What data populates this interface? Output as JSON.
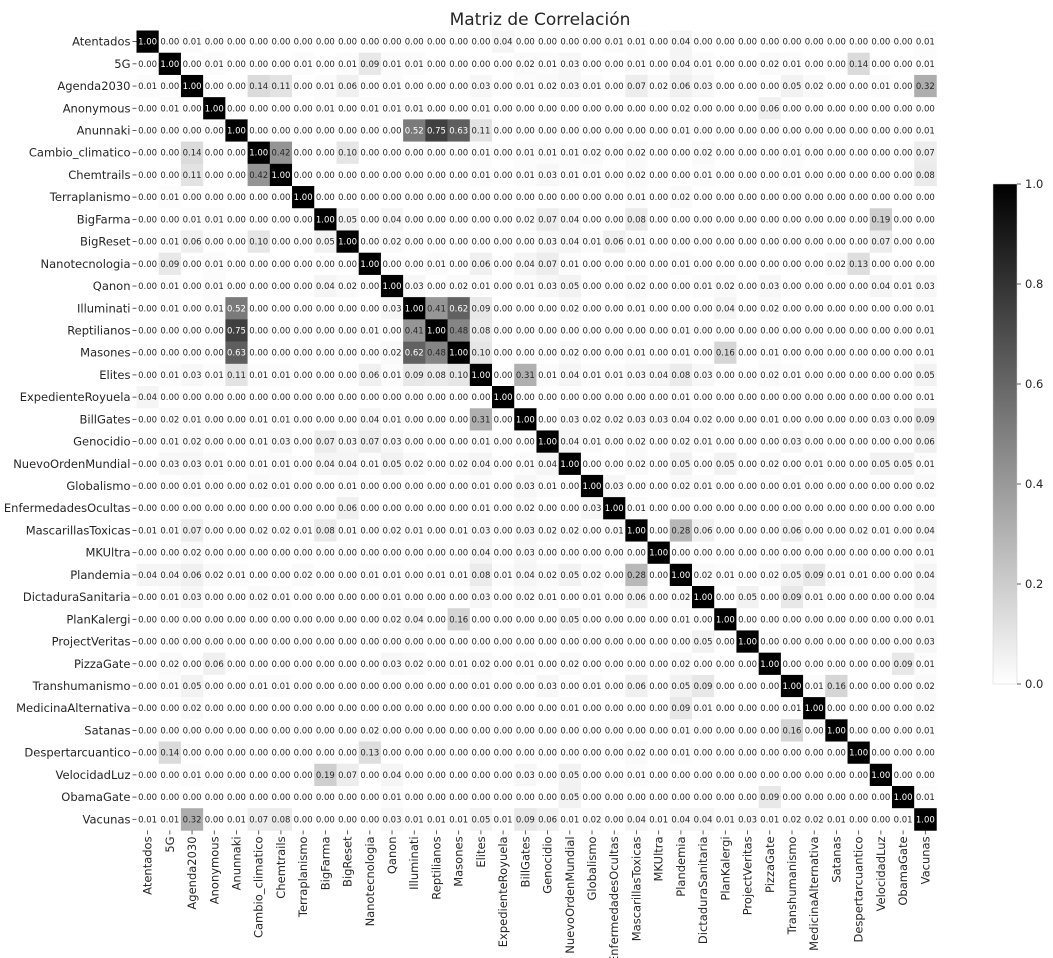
{
  "chart_data": {
    "type": "heatmap",
    "title": "Matriz de Correlación",
    "labels": [
      "Atentados",
      "5G",
      "Agenda2030",
      "Anonymous",
      "Anunnaki",
      "Cambio_climatico",
      "Chemtrails",
      "Terraplanismo",
      "BigFarma",
      "BigReset",
      "Nanotecnologia",
      "Qanon",
      "Illuminati",
      "Reptilianos",
      "Masones",
      "Elites",
      "ExpedienteRoyuela",
      "BillGates",
      "Genocidio",
      "NuevoOrdenMundial",
      "Globalismo",
      "EnfermedadesOcultas",
      "MascarillasToxicas",
      "MKUltra",
      "Plandemia",
      "DictaduraSanitaria",
      "PlanKalergi",
      "ProjectVeritas",
      "PizzaGate",
      "Transhumanismo",
      "MedicinaAlternativa",
      "Satanas",
      "Despertarcuantico",
      "VelocidadLuz",
      "ObamaGate",
      "Vacunas"
    ],
    "matrix": [
      [
        1.0,
        0.0,
        0.01,
        0.0,
        0.0,
        0.0,
        0.0,
        0.0,
        0.0,
        0.0,
        0.0,
        0.0,
        0.0,
        0.0,
        0.0,
        0.0,
        0.04,
        0.0,
        0.0,
        0.0,
        0.0,
        0.01,
        0.01,
        0.0,
        0.04,
        0.0,
        0.0,
        0.0,
        0.0,
        0.0,
        0.0,
        0.0,
        0.0,
        0.0,
        0.0,
        0.01
      ],
      [
        0.0,
        1.0,
        0.0,
        0.01,
        0.0,
        0.0,
        0.0,
        0.01,
        0.0,
        0.01,
        0.09,
        0.01,
        0.01,
        0.0,
        0.0,
        0.0,
        0.0,
        0.02,
        0.01,
        0.03,
        0.0,
        0.0,
        0.01,
        0.0,
        0.04,
        0.01,
        0.0,
        0.0,
        0.02,
        0.01,
        0.0,
        0.0,
        0.14,
        0.0,
        0.0,
        0.01
      ],
      [
        0.01,
        0.0,
        1.0,
        0.0,
        0.0,
        0.14,
        0.11,
        0.0,
        0.01,
        0.06,
        0.0,
        0.01,
        0.0,
        0.0,
        0.0,
        0.03,
        0.0,
        0.01,
        0.02,
        0.03,
        0.01,
        0.0,
        0.07,
        0.02,
        0.06,
        0.03,
        0.0,
        0.0,
        0.0,
        0.05,
        0.02,
        0.0,
        0.0,
        0.01,
        0.0,
        0.32
      ],
      [
        0.0,
        0.01,
        0.0,
        1.0,
        0.0,
        0.0,
        0.0,
        0.0,
        0.01,
        0.0,
        0.01,
        0.01,
        0.01,
        0.0,
        0.0,
        0.01,
        0.0,
        0.0,
        0.0,
        0.0,
        0.0,
        0.0,
        0.0,
        0.0,
        0.02,
        0.0,
        0.0,
        0.0,
        0.06,
        0.0,
        0.0,
        0.0,
        0.0,
        0.0,
        0.0,
        0.0
      ],
      [
        0.0,
        0.0,
        0.0,
        0.0,
        1.0,
        0.0,
        0.0,
        0.0,
        0.0,
        0.0,
        0.0,
        0.0,
        0.52,
        0.75,
        0.63,
        0.11,
        0.0,
        0.0,
        0.0,
        0.0,
        0.0,
        0.0,
        0.0,
        0.0,
        0.01,
        0.0,
        0.0,
        0.0,
        0.0,
        0.0,
        0.0,
        0.0,
        0.0,
        0.0,
        0.0,
        0.01
      ],
      [
        0.0,
        0.0,
        0.14,
        0.0,
        0.0,
        1.0,
        0.42,
        0.0,
        0.0,
        0.1,
        0.0,
        0.0,
        0.0,
        0.0,
        0.0,
        0.01,
        0.0,
        0.01,
        0.01,
        0.01,
        0.02,
        0.0,
        0.02,
        0.0,
        0.0,
        0.02,
        0.0,
        0.0,
        0.0,
        0.01,
        0.0,
        0.0,
        0.0,
        0.0,
        0.0,
        0.07
      ],
      [
        0.0,
        0.0,
        0.11,
        0.0,
        0.0,
        0.42,
        1.0,
        0.0,
        0.0,
        0.0,
        0.0,
        0.0,
        0.0,
        0.0,
        0.0,
        0.01,
        0.0,
        0.01,
        0.03,
        0.01,
        0.01,
        0.0,
        0.02,
        0.0,
        0.0,
        0.01,
        0.0,
        0.0,
        0.0,
        0.01,
        0.0,
        0.0,
        0.0,
        0.0,
        0.0,
        0.08
      ],
      [
        0.0,
        0.01,
        0.0,
        0.0,
        0.0,
        0.0,
        0.0,
        1.0,
        0.0,
        0.0,
        0.0,
        0.0,
        0.0,
        0.0,
        0.0,
        0.0,
        0.0,
        0.0,
        0.0,
        0.0,
        0.0,
        0.0,
        0.01,
        0.0,
        0.02,
        0.0,
        0.0,
        0.0,
        0.0,
        0.0,
        0.0,
        0.0,
        0.0,
        0.0,
        0.0,
        0.0
      ],
      [
        0.0,
        0.0,
        0.01,
        0.01,
        0.0,
        0.0,
        0.0,
        0.0,
        1.0,
        0.05,
        0.0,
        0.04,
        0.0,
        0.0,
        0.0,
        0.0,
        0.0,
        0.02,
        0.07,
        0.04,
        0.0,
        0.0,
        0.08,
        0.0,
        0.0,
        0.0,
        0.0,
        0.0,
        0.0,
        0.0,
        0.0,
        0.0,
        0.0,
        0.19,
        0.0,
        0.0
      ],
      [
        0.0,
        0.01,
        0.06,
        0.0,
        0.0,
        0.1,
        0.0,
        0.0,
        0.05,
        1.0,
        0.0,
        0.02,
        0.0,
        0.0,
        0.0,
        0.0,
        0.0,
        0.0,
        0.03,
        0.04,
        0.01,
        0.06,
        0.01,
        0.0,
        0.0,
        0.0,
        0.0,
        0.0,
        0.0,
        0.0,
        0.0,
        0.0,
        0.0,
        0.07,
        0.0,
        0.0
      ],
      [
        0.0,
        0.09,
        0.0,
        0.01,
        0.0,
        0.0,
        0.0,
        0.0,
        0.0,
        0.0,
        1.0,
        0.0,
        0.0,
        0.01,
        0.0,
        0.06,
        0.0,
        0.04,
        0.07,
        0.01,
        0.0,
        0.0,
        0.0,
        0.0,
        0.01,
        0.0,
        0.0,
        0.0,
        0.0,
        0.0,
        0.0,
        0.02,
        0.13,
        0.0,
        0.0,
        0.0
      ],
      [
        0.0,
        0.01,
        0.0,
        0.01,
        0.0,
        0.0,
        0.0,
        0.0,
        0.04,
        0.02,
        0.0,
        1.0,
        0.03,
        0.0,
        0.02,
        0.01,
        0.0,
        0.01,
        0.03,
        0.05,
        0.0,
        0.0,
        0.02,
        0.0,
        0.0,
        0.01,
        0.02,
        0.0,
        0.03,
        0.0,
        0.0,
        0.0,
        0.0,
        0.04,
        0.01,
        0.03
      ],
      [
        0.0,
        0.01,
        0.0,
        0.01,
        0.52,
        0.0,
        0.0,
        0.0,
        0.0,
        0.0,
        0.0,
        0.03,
        1.0,
        0.41,
        0.62,
        0.09,
        0.0,
        0.0,
        0.0,
        0.02,
        0.0,
        0.0,
        0.01,
        0.0,
        0.0,
        0.0,
        0.04,
        0.0,
        0.02,
        0.0,
        0.0,
        0.0,
        0.0,
        0.0,
        0.0,
        0.01
      ],
      [
        0.0,
        0.0,
        0.0,
        0.0,
        0.75,
        0.0,
        0.0,
        0.0,
        0.0,
        0.0,
        0.01,
        0.0,
        0.41,
        1.0,
        0.48,
        0.08,
        0.0,
        0.0,
        0.0,
        0.0,
        0.0,
        0.0,
        0.0,
        0.0,
        0.01,
        0.0,
        0.0,
        0.0,
        0.0,
        0.0,
        0.0,
        0.0,
        0.0,
        0.0,
        0.0,
        0.01
      ],
      [
        0.0,
        0.0,
        0.0,
        0.0,
        0.63,
        0.0,
        0.0,
        0.0,
        0.0,
        0.0,
        0.0,
        0.02,
        0.62,
        0.48,
        1.0,
        0.1,
        0.0,
        0.0,
        0.0,
        0.02,
        0.0,
        0.0,
        0.01,
        0.0,
        0.01,
        0.0,
        0.16,
        0.0,
        0.01,
        0.0,
        0.0,
        0.0,
        0.0,
        0.0,
        0.0,
        0.01
      ],
      [
        0.0,
        0.01,
        0.03,
        0.01,
        0.11,
        0.01,
        0.01,
        0.0,
        0.0,
        0.0,
        0.06,
        0.01,
        0.09,
        0.08,
        0.1,
        1.0,
        0.0,
        0.31,
        0.01,
        0.04,
        0.01,
        0.01,
        0.03,
        0.04,
        0.08,
        0.03,
        0.0,
        0.0,
        0.02,
        0.01,
        0.0,
        0.0,
        0.0,
        0.0,
        0.0,
        0.05
      ],
      [
        0.04,
        0.0,
        0.0,
        0.0,
        0.0,
        0.0,
        0.0,
        0.0,
        0.0,
        0.0,
        0.0,
        0.0,
        0.0,
        0.0,
        0.0,
        0.0,
        1.0,
        0.0,
        0.0,
        0.0,
        0.0,
        0.0,
        0.0,
        0.0,
        0.01,
        0.0,
        0.0,
        0.0,
        0.0,
        0.0,
        0.0,
        0.0,
        0.0,
        0.0,
        0.0,
        0.01
      ],
      [
        0.0,
        0.02,
        0.01,
        0.0,
        0.0,
        0.01,
        0.01,
        0.0,
        0.0,
        0.0,
        0.04,
        0.01,
        0.0,
        0.0,
        0.0,
        0.31,
        0.0,
        1.0,
        0.0,
        0.03,
        0.02,
        0.02,
        0.03,
        0.03,
        0.04,
        0.02,
        0.0,
        0.0,
        0.01,
        0.0,
        0.0,
        0.0,
        0.0,
        0.03,
        0.0,
        0.09
      ],
      [
        0.0,
        0.01,
        0.02,
        0.0,
        0.0,
        0.01,
        0.03,
        0.0,
        0.07,
        0.03,
        0.07,
        0.03,
        0.0,
        0.0,
        0.0,
        0.01,
        0.0,
        0.0,
        1.0,
        0.04,
        0.01,
        0.0,
        0.02,
        0.0,
        0.02,
        0.01,
        0.0,
        0.0,
        0.0,
        0.03,
        0.0,
        0.0,
        0.0,
        0.0,
        0.0,
        0.06
      ],
      [
        0.0,
        0.03,
        0.03,
        0.01,
        0.0,
        0.01,
        0.01,
        0.0,
        0.04,
        0.04,
        0.01,
        0.05,
        0.02,
        0.0,
        0.02,
        0.04,
        0.0,
        0.01,
        0.04,
        1.0,
        0.0,
        0.0,
        0.02,
        0.0,
        0.05,
        0.0,
        0.05,
        0.0,
        0.02,
        0.0,
        0.01,
        0.0,
        0.0,
        0.05,
        0.05,
        0.01
      ],
      [
        0.0,
        0.0,
        0.01,
        0.0,
        0.0,
        0.02,
        0.01,
        0.0,
        0.0,
        0.01,
        0.0,
        0.0,
        0.0,
        0.0,
        0.0,
        0.01,
        0.0,
        0.03,
        0.01,
        0.0,
        1.0,
        0.03,
        0.0,
        0.0,
        0.02,
        0.01,
        0.0,
        0.0,
        0.0,
        0.01,
        0.0,
        0.0,
        0.0,
        0.0,
        0.0,
        0.02
      ],
      [
        0.0,
        0.0,
        0.0,
        0.0,
        0.0,
        0.0,
        0.0,
        0.0,
        0.0,
        0.06,
        0.0,
        0.0,
        0.0,
        0.0,
        0.0,
        0.01,
        0.0,
        0.02,
        0.0,
        0.0,
        0.03,
        1.0,
        0.01,
        0.0,
        0.0,
        0.0,
        0.0,
        0.0,
        0.0,
        0.0,
        0.0,
        0.0,
        0.0,
        0.0,
        0.0,
        0.0
      ],
      [
        0.01,
        0.01,
        0.07,
        0.0,
        0.0,
        0.02,
        0.02,
        0.01,
        0.08,
        0.01,
        0.0,
        0.02,
        0.01,
        0.0,
        0.01,
        0.03,
        0.0,
        0.03,
        0.02,
        0.02,
        0.0,
        0.01,
        1.0,
        0.0,
        0.28,
        0.06,
        0.0,
        0.0,
        0.0,
        0.06,
        0.0,
        0.0,
        0.02,
        0.01,
        0.0,
        0.04
      ],
      [
        0.0,
        0.0,
        0.02,
        0.0,
        0.0,
        0.0,
        0.0,
        0.0,
        0.0,
        0.0,
        0.0,
        0.0,
        0.0,
        0.0,
        0.0,
        0.04,
        0.0,
        0.03,
        0.0,
        0.0,
        0.0,
        0.0,
        0.0,
        1.0,
        0.0,
        0.0,
        0.0,
        0.0,
        0.0,
        0.0,
        0.0,
        0.0,
        0.0,
        0.0,
        0.0,
        0.01
      ],
      [
        0.04,
        0.04,
        0.06,
        0.02,
        0.01,
        0.0,
        0.0,
        0.02,
        0.0,
        0.0,
        0.01,
        0.01,
        0.0,
        0.01,
        0.01,
        0.08,
        0.01,
        0.04,
        0.02,
        0.05,
        0.02,
        0.0,
        0.28,
        0.0,
        1.0,
        0.02,
        0.01,
        0.0,
        0.02,
        0.05,
        0.09,
        0.01,
        0.01,
        0.0,
        0.0,
        0.04
      ],
      [
        0.0,
        0.01,
        0.03,
        0.0,
        0.0,
        0.02,
        0.01,
        0.0,
        0.0,
        0.0,
        0.0,
        0.01,
        0.0,
        0.0,
        0.0,
        0.03,
        0.0,
        0.02,
        0.01,
        0.0,
        0.01,
        0.0,
        0.06,
        0.0,
        0.02,
        1.0,
        0.0,
        0.05,
        0.0,
        0.09,
        0.01,
        0.0,
        0.0,
        0.0,
        0.0,
        0.04
      ],
      [
        0.0,
        0.0,
        0.0,
        0.0,
        0.0,
        0.0,
        0.0,
        0.0,
        0.0,
        0.0,
        0.0,
        0.02,
        0.04,
        0.0,
        0.16,
        0.0,
        0.0,
        0.0,
        0.0,
        0.05,
        0.0,
        0.0,
        0.0,
        0.0,
        0.01,
        0.0,
        1.0,
        0.0,
        0.0,
        0.0,
        0.0,
        0.0,
        0.0,
        0.0,
        0.0,
        0.01
      ],
      [
        0.0,
        0.0,
        0.0,
        0.0,
        0.0,
        0.0,
        0.0,
        0.0,
        0.0,
        0.0,
        0.0,
        0.0,
        0.0,
        0.0,
        0.0,
        0.0,
        0.0,
        0.0,
        0.0,
        0.0,
        0.0,
        0.0,
        0.0,
        0.0,
        0.0,
        0.05,
        0.0,
        1.0,
        0.0,
        0.0,
        0.0,
        0.0,
        0.0,
        0.0,
        0.0,
        0.03
      ],
      [
        0.0,
        0.02,
        0.0,
        0.06,
        0.0,
        0.0,
        0.0,
        0.0,
        0.0,
        0.0,
        0.0,
        0.03,
        0.02,
        0.0,
        0.01,
        0.02,
        0.0,
        0.01,
        0.0,
        0.02,
        0.0,
        0.0,
        0.0,
        0.0,
        0.02,
        0.0,
        0.0,
        0.0,
        1.0,
        0.0,
        0.0,
        0.0,
        0.0,
        0.0,
        0.09,
        0.01
      ],
      [
        0.0,
        0.01,
        0.05,
        0.0,
        0.0,
        0.01,
        0.01,
        0.0,
        0.0,
        0.0,
        0.0,
        0.0,
        0.0,
        0.0,
        0.0,
        0.01,
        0.0,
        0.0,
        0.03,
        0.0,
        0.01,
        0.0,
        0.06,
        0.0,
        0.05,
        0.09,
        0.0,
        0.0,
        0.0,
        1.0,
        0.01,
        0.16,
        0.0,
        0.0,
        0.0,
        0.02
      ],
      [
        0.0,
        0.0,
        0.02,
        0.0,
        0.0,
        0.0,
        0.0,
        0.0,
        0.0,
        0.0,
        0.0,
        0.0,
        0.0,
        0.0,
        0.0,
        0.0,
        0.0,
        0.0,
        0.0,
        0.01,
        0.0,
        0.0,
        0.0,
        0.0,
        0.09,
        0.01,
        0.0,
        0.0,
        0.0,
        0.01,
        1.0,
        0.0,
        0.0,
        0.0,
        0.0,
        0.02
      ],
      [
        0.0,
        0.0,
        0.0,
        0.0,
        0.0,
        0.0,
        0.0,
        0.0,
        0.0,
        0.0,
        0.02,
        0.0,
        0.0,
        0.0,
        0.0,
        0.0,
        0.0,
        0.0,
        0.0,
        0.0,
        0.0,
        0.0,
        0.0,
        0.0,
        0.01,
        0.0,
        0.0,
        0.0,
        0.0,
        0.16,
        0.0,
        1.0,
        0.0,
        0.0,
        0.0,
        0.01
      ],
      [
        0.0,
        0.14,
        0.0,
        0.0,
        0.0,
        0.0,
        0.0,
        0.0,
        0.0,
        0.0,
        0.13,
        0.0,
        0.0,
        0.0,
        0.0,
        0.0,
        0.0,
        0.0,
        0.0,
        0.0,
        0.0,
        0.0,
        0.02,
        0.0,
        0.01,
        0.0,
        0.0,
        0.0,
        0.0,
        0.0,
        0.0,
        0.0,
        1.0,
        0.0,
        0.0,
        0.0
      ],
      [
        0.0,
        0.0,
        0.01,
        0.0,
        0.0,
        0.0,
        0.0,
        0.0,
        0.19,
        0.07,
        0.0,
        0.04,
        0.0,
        0.0,
        0.0,
        0.0,
        0.0,
        0.03,
        0.0,
        0.05,
        0.0,
        0.0,
        0.01,
        0.0,
        0.0,
        0.0,
        0.0,
        0.0,
        0.0,
        0.0,
        0.0,
        0.0,
        0.0,
        1.0,
        0.0,
        0.0
      ],
      [
        0.0,
        0.0,
        0.0,
        0.0,
        0.0,
        0.0,
        0.0,
        0.0,
        0.0,
        0.0,
        0.0,
        0.01,
        0.0,
        0.0,
        0.0,
        0.0,
        0.0,
        0.0,
        0.0,
        0.05,
        0.0,
        0.0,
        0.0,
        0.0,
        0.0,
        0.0,
        0.0,
        0.0,
        0.09,
        0.0,
        0.0,
        0.0,
        0.0,
        0.0,
        1.0,
        0.01
      ],
      [
        0.01,
        0.01,
        0.32,
        0.0,
        0.01,
        0.07,
        0.08,
        0.0,
        0.0,
        0.0,
        0.0,
        0.03,
        0.01,
        0.01,
        0.01,
        0.05,
        0.01,
        0.09,
        0.06,
        0.01,
        0.02,
        0.0,
        0.04,
        0.01,
        0.04,
        0.04,
        0.01,
        0.03,
        0.01,
        0.02,
        0.02,
        0.01,
        0.0,
        0.0,
        0.01,
        1.0
      ]
    ],
    "colorbar": {
      "min": 0.0,
      "max": 1.0,
      "ticks": [
        "0.0",
        "0.2",
        "0.4",
        "0.6",
        "0.8",
        "1.0"
      ],
      "colormap": "white-to-black"
    },
    "value_format": "2 decimals"
  }
}
